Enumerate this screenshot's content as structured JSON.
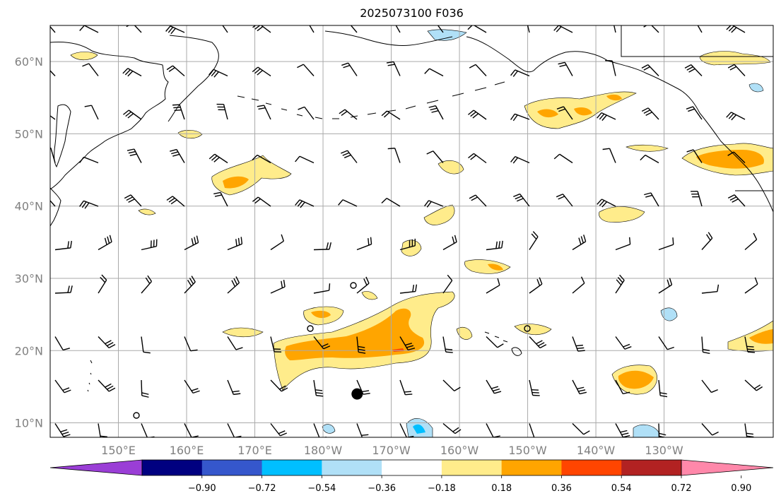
{
  "title": "2025073100 F036",
  "map": {
    "lon_range": [
      140,
      246
    ],
    "lat_range": [
      8,
      65
    ],
    "grid": true,
    "lat_ticks": [
      {
        "value": 10,
        "label": "10°N"
      },
      {
        "value": 20,
        "label": "20°N"
      },
      {
        "value": 30,
        "label": "30°N"
      },
      {
        "value": 40,
        "label": "40°N"
      },
      {
        "value": 50,
        "label": "50°N"
      },
      {
        "value": 60,
        "label": "60°N"
      }
    ],
    "lon_ticks": [
      {
        "value": 150,
        "label": "150°E"
      },
      {
        "value": 160,
        "label": "160°E"
      },
      {
        "value": 170,
        "label": "170°E"
      },
      {
        "value": 180,
        "label": "180°W"
      },
      {
        "value": 190,
        "label": "170°W"
      },
      {
        "value": 200,
        "label": "160°W"
      },
      {
        "value": 210,
        "label": "150°W"
      },
      {
        "value": 220,
        "label": "140°W"
      },
      {
        "value": 230,
        "label": "130°W"
      }
    ],
    "marker": {
      "lon": 185,
      "lat": 14
    }
  },
  "colorbar": {
    "extend": "both",
    "colors": [
      "#9a3ed6",
      "#000080",
      "#3557cc",
      "#00bfff",
      "#b0e0f7",
      "#ffffff",
      "#ffec8b",
      "#ffa500",
      "#ff4500",
      "#b22222",
      "#ff88aa"
    ],
    "tick_labels": [
      "−0.90",
      "−0.72",
      "−0.54",
      "−0.36",
      "−0.18",
      "0.18",
      "0.36",
      "0.54",
      "0.72",
      "0.90"
    ]
  },
  "colors": {
    "coast": "#000000",
    "grid": "#aaaaaa",
    "barb": "#000000"
  }
}
